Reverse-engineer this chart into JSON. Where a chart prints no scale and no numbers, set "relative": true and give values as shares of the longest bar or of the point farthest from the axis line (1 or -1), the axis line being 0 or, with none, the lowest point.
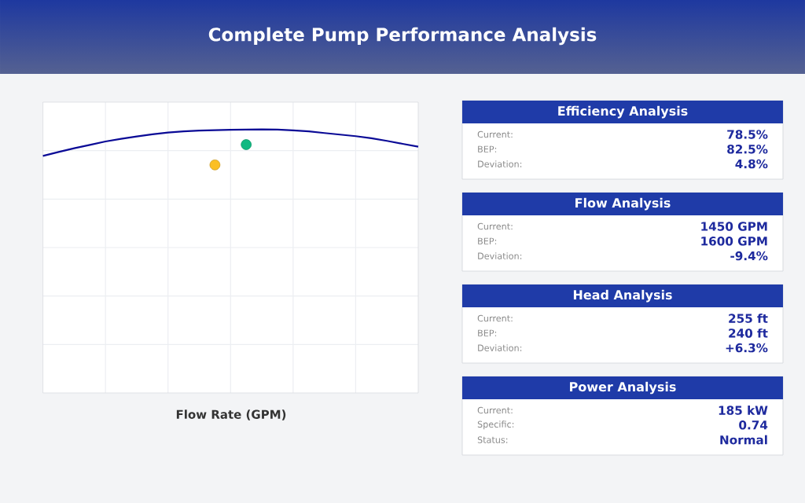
{
  "chart_data": [
    {
      "type": "line",
      "title": "Complete Pump Performance Analysis",
      "xlabel": "Flow Rate (GPM)",
      "relative": true,
      "grid": true,
      "categories": [
        null,
        null,
        null,
        null,
        null,
        null,
        null,
        null,
        null,
        null,
        null,
        null,
        null,
        null,
        null,
        null,
        null,
        null,
        null,
        null,
        null,
        null,
        null,
        null,
        null
      ],
      "series": [
        {
          "type": "line",
          "color": "#0a0a96",
          "values": [
            0.899,
            0.914,
            0.928,
            0.941,
            0.954,
            0.964,
            0.973,
            0.981,
            0.988,
            0.992,
            0.995,
            0.997,
            0.998,
            0.999,
            1.0,
            0.999,
            0.996,
            0.992,
            0.986,
            0.98,
            0.974,
            0.966,
            0.956,
            0.945,
            0.934
          ]
        },
        {
          "type": "line",
          "marker": "circle",
          "color": "#fbbf24",
          "values": [
            null,
            null,
            null,
            null,
            null,
            null,
            null,
            null,
            null,
            null,
            null,
            0.865,
            null,
            null,
            null,
            null,
            null,
            null,
            null,
            null,
            null,
            null,
            null,
            null,
            null
          ]
        },
        {
          "type": "line",
          "marker": "circle",
          "color": "#10b981",
          "values": [
            null,
            null,
            null,
            null,
            null,
            null,
            null,
            null,
            null,
            null,
            null,
            null,
            null,
            0.942,
            null,
            null,
            null,
            null,
            null,
            null,
            null,
            null,
            null,
            null,
            null
          ]
        }
      ]
    },
    {
      "type": "other",
      "title": "Efficiency Analysis",
      "annotations": [
        "Current:",
        "78.5%",
        "BEP:",
        "82.5%",
        "Deviation:",
        "4.8%"
      ]
    },
    {
      "type": "other",
      "title": "Flow Analysis",
      "annotations": [
        "Current:",
        "1450 GPM",
        "BEP:",
        "1600 GPM",
        "Deviation:",
        "-9.4%"
      ]
    },
    {
      "type": "other",
      "title": "Head Analysis",
      "annotations": [
        "Current:",
        "255 ft",
        "BEP:",
        "240 ft",
        "Deviation:",
        "+6.3%"
      ]
    },
    {
      "type": "other",
      "title": "Power Analysis",
      "annotations": [
        "Current:",
        "185 kW",
        "Specific:",
        "0.74",
        "Status:",
        "Normal"
      ]
    }
  ]
}
